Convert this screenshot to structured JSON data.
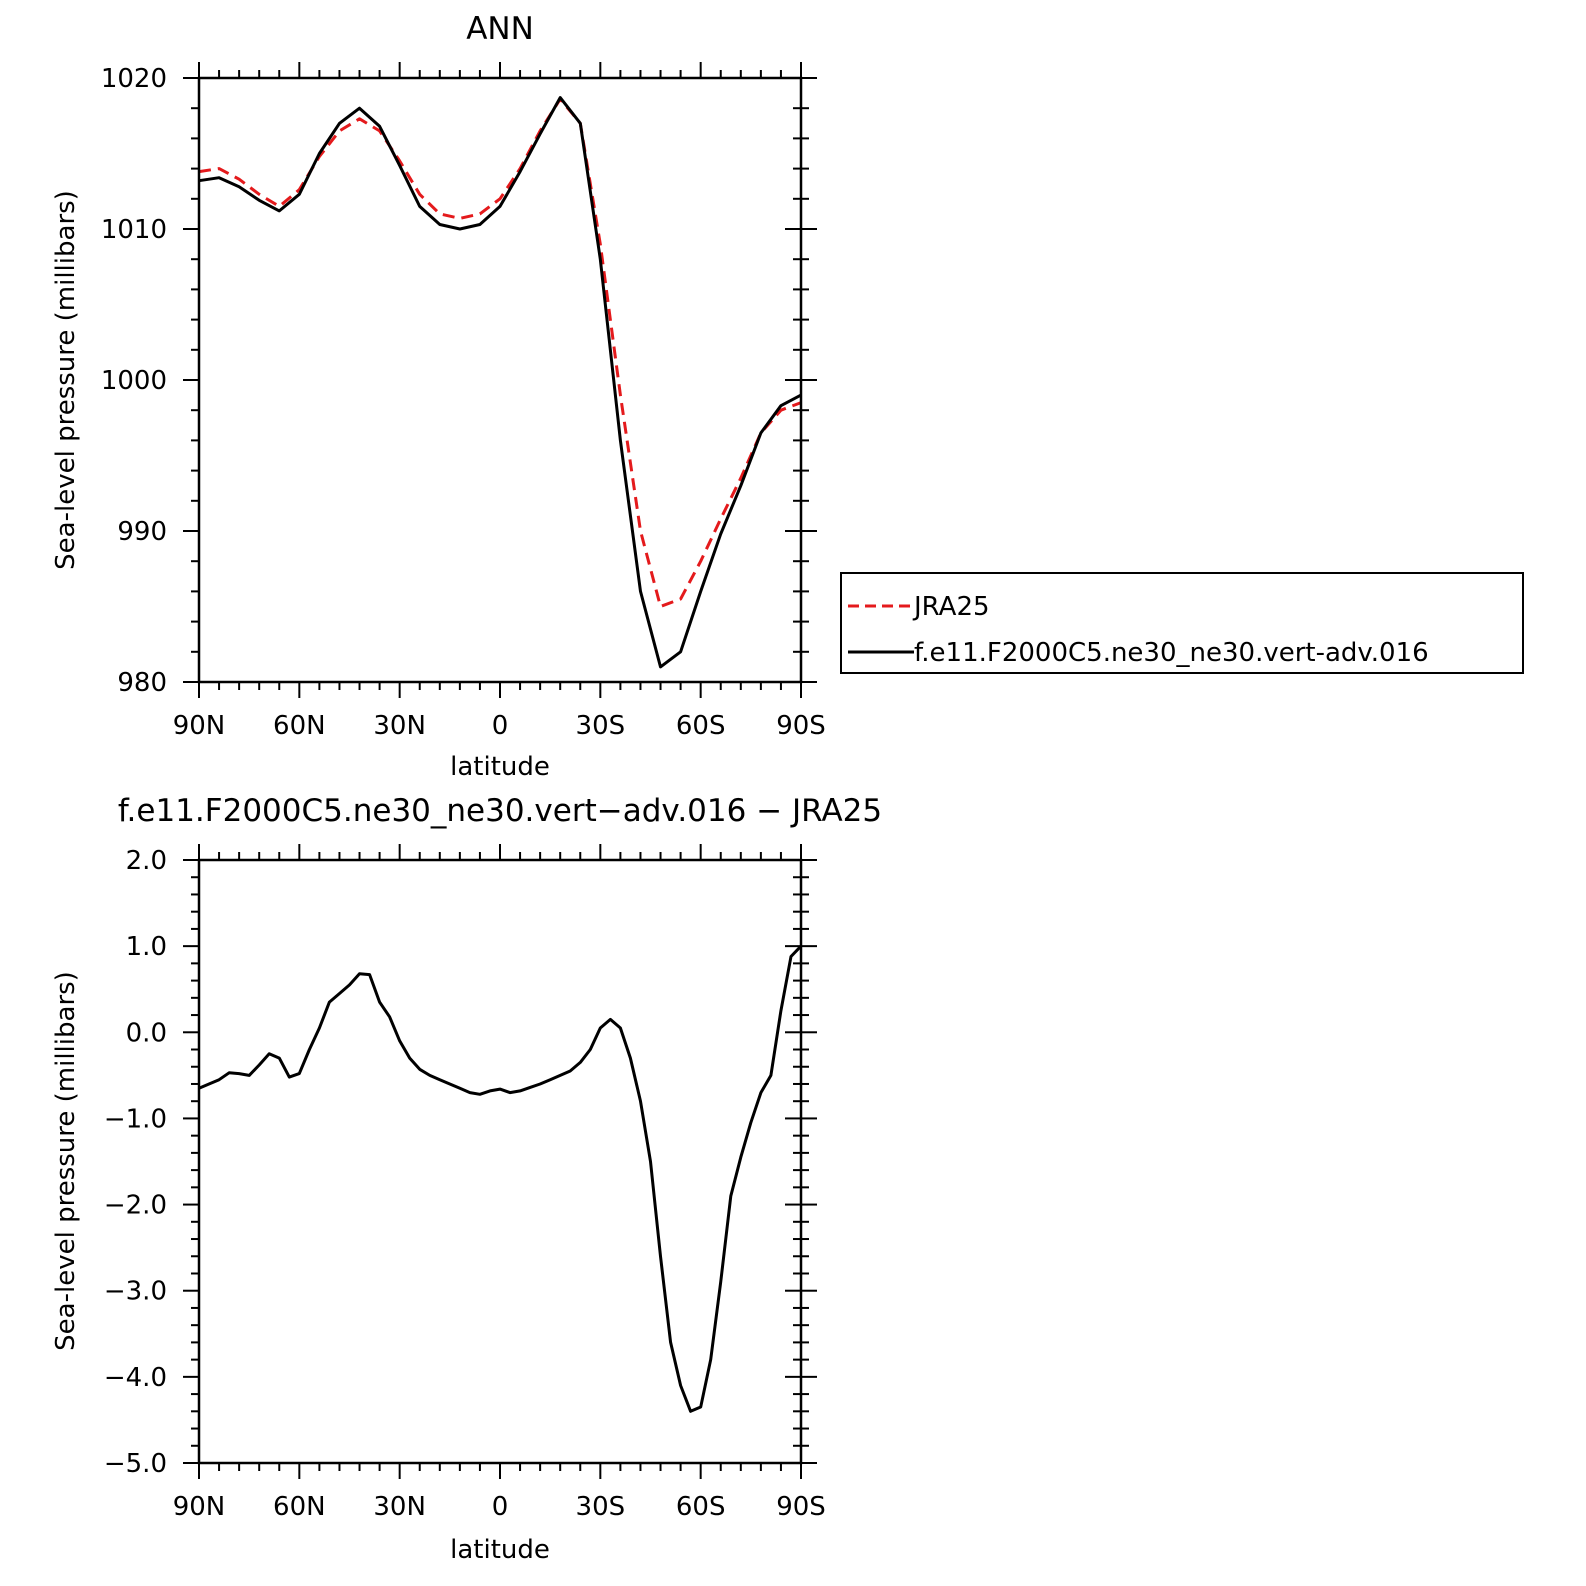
{
  "chart_data": [
    {
      "type": "line",
      "title": "ANN",
      "xlabel": "latitude",
      "ylabel": "Sea-level pressure (millibars)",
      "xlim": [
        90,
        -90
      ],
      "ylim": [
        980,
        1020
      ],
      "xticks": [
        90,
        60,
        30,
        0,
        -30,
        -60,
        -90
      ],
      "xtick_labels": [
        "90N",
        "60N",
        "30N",
        "0",
        "30S",
        "60S",
        "90S"
      ],
      "yticks": [
        980,
        990,
        1000,
        1010,
        1020
      ],
      "ytick_labels": [
        "980",
        "990",
        "1000",
        "1010",
        "1020"
      ],
      "grid": false,
      "legend": "right",
      "x": [
        90,
        84,
        78,
        72,
        66,
        60,
        54,
        48,
        42,
        36,
        30,
        24,
        18,
        12,
        6,
        0,
        -6,
        -12,
        -18,
        -24,
        -30,
        -36,
        -42,
        -48,
        -54,
        -60,
        -66,
        -72,
        -78,
        -84,
        -90
      ],
      "series": [
        {
          "name": "JRA25",
          "color": "#e41a1c",
          "dash": "dashed",
          "values": [
            1013.8,
            1014.0,
            1013.3,
            1012.3,
            1011.5,
            1012.6,
            1014.8,
            1016.5,
            1017.3,
            1016.5,
            1014.5,
            1012.3,
            1011.0,
            1010.7,
            1011.0,
            1012.0,
            1014.0,
            1016.5,
            1018.6,
            1017.0,
            1009.0,
            999.0,
            990.0,
            985.0,
            985.5,
            988.0,
            990.8,
            993.5,
            996.5,
            998.0,
            998.5
          ]
        },
        {
          "name": "f.e11.F2000C5.ne30_ne30.vert-adv.016",
          "color": "#000000",
          "dash": "solid",
          "values": [
            1013.2,
            1013.4,
            1012.8,
            1011.9,
            1011.2,
            1012.3,
            1015.0,
            1017.0,
            1018.0,
            1016.8,
            1014.2,
            1011.5,
            1010.3,
            1010.0,
            1010.3,
            1011.5,
            1013.8,
            1016.3,
            1018.7,
            1017.0,
            1008.0,
            996.0,
            986.0,
            981.0,
            982.0,
            986.0,
            989.8,
            993.0,
            996.5,
            998.3,
            999.0
          ]
        }
      ]
    },
    {
      "type": "line",
      "title": "f.e11.F2000C5.ne30_ne30.vert−adv.016 − JRA25",
      "xlabel": "latitude",
      "ylabel": "Sea-level pressure (millibars)",
      "xlim": [
        90,
        -90
      ],
      "ylim": [
        -5.0,
        2.0
      ],
      "xticks": [
        90,
        60,
        30,
        0,
        -30,
        -60,
        -90
      ],
      "xtick_labels": [
        "90N",
        "60N",
        "30N",
        "0",
        "30S",
        "60S",
        "90S"
      ],
      "yticks": [
        -5.0,
        -4.0,
        -3.0,
        -2.0,
        -1.0,
        0.0,
        1.0,
        2.0
      ],
      "ytick_labels": [
        "−5.0",
        "−4.0",
        "−3.0",
        "−2.0",
        "−1.0",
        "0.0",
        "1.0",
        "2.0"
      ],
      "grid": false,
      "x": [
        90,
        87,
        84,
        81,
        78,
        75,
        72,
        69,
        66,
        63,
        60,
        57,
        54,
        51,
        48,
        45,
        42,
        39,
        36,
        33,
        30,
        27,
        24,
        21,
        18,
        15,
        12,
        9,
        6,
        3,
        0,
        -3,
        -6,
        -9,
        -12,
        -15,
        -18,
        -21,
        -24,
        -27,
        -30,
        -33,
        -36,
        -39,
        -42,
        -45,
        -48,
        -51,
        -54,
        -57,
        -60,
        -63,
        -66,
        -69,
        -72,
        -75,
        -78,
        -81,
        -84,
        -87,
        -90
      ],
      "series": [
        {
          "name": "",
          "color": "#000000",
          "dash": "solid",
          "values": [
            -0.65,
            -0.6,
            -0.55,
            -0.47,
            -0.48,
            -0.5,
            -0.38,
            -0.25,
            -0.3,
            -0.52,
            -0.48,
            -0.2,
            0.05,
            0.35,
            0.45,
            0.55,
            0.68,
            0.67,
            0.35,
            0.18,
            -0.1,
            -0.3,
            -0.43,
            -0.5,
            -0.55,
            -0.6,
            -0.65,
            -0.7,
            -0.72,
            -0.68,
            -0.66,
            -0.7,
            -0.68,
            -0.64,
            -0.6,
            -0.55,
            -0.5,
            -0.45,
            -0.35,
            -0.2,
            0.05,
            0.15,
            0.05,
            -0.3,
            -0.8,
            -1.5,
            -2.6,
            -3.6,
            -4.1,
            -4.4,
            -4.35,
            -3.8,
            -2.9,
            -1.9,
            -1.45,
            -1.05,
            -0.7,
            -0.5,
            0.25,
            0.88,
            1.0
          ]
        }
      ]
    }
  ]
}
